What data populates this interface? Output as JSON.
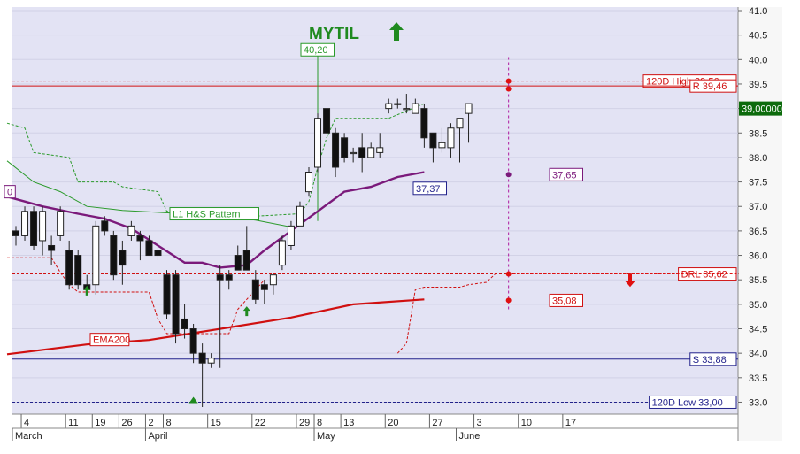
{
  "chart_data": {
    "type": "candlestick",
    "title": "MYTIL",
    "title_signal": "up",
    "ylim": [
      32.9,
      41.0
    ],
    "y_ticks": [
      "41.0",
      "40.5",
      "40.0",
      "39.5",
      "39.0",
      "38.5",
      "38.0",
      "37.5",
      "37.0",
      "36.5",
      "36.0",
      "35.5",
      "35.0",
      "34.5",
      "34.0",
      "33.5",
      "33.0"
    ],
    "last_price": "39,00000",
    "x_ticks": [
      {
        "d": 1,
        "label": "4"
      },
      {
        "d": 6,
        "label": "11"
      },
      {
        "d": 9,
        "label": "19"
      },
      {
        "d": 12,
        "label": "26"
      },
      {
        "d": 15,
        "label": "2"
      },
      {
        "d": 17,
        "label": "8"
      },
      {
        "d": 22,
        "label": "15"
      },
      {
        "d": 27,
        "label": "22"
      },
      {
        "d": 32,
        "label": "29"
      },
      {
        "d": 34,
        "label": "8"
      },
      {
        "d": 37,
        "label": "13"
      },
      {
        "d": 42,
        "label": "20"
      },
      {
        "d": 47,
        "label": "27"
      },
      {
        "d": 52,
        "label": "3"
      },
      {
        "d": 57,
        "label": "10"
      },
      {
        "d": 62,
        "label": "17"
      }
    ],
    "months": [
      {
        "d": 0,
        "label": "March"
      },
      {
        "d": 15,
        "label": "April"
      },
      {
        "d": 34,
        "label": "May"
      },
      {
        "d": 50,
        "label": "June"
      }
    ],
    "candles": [
      [
        36.5,
        36.6,
        36.2,
        36.4
      ],
      [
        36.4,
        37.0,
        36.3,
        36.9
      ],
      [
        36.9,
        37.0,
        36.1,
        36.2
      ],
      [
        36.3,
        37.0,
        36.0,
        36.9
      ],
      [
        36.2,
        36.4,
        35.8,
        36.1
      ],
      [
        36.4,
        37.0,
        36.3,
        36.9
      ],
      [
        36.1,
        36.3,
        35.3,
        35.4
      ],
      [
        36.0,
        36.1,
        35.3,
        35.4
      ],
      [
        35.4,
        35.6,
        35.2,
        35.3
      ],
      [
        35.4,
        36.7,
        35.2,
        36.6
      ],
      [
        36.7,
        36.8,
        36.4,
        36.5
      ],
      [
        36.4,
        36.5,
        35.5,
        35.6
      ],
      [
        36.1,
        36.3,
        35.4,
        35.8
      ],
      [
        36.4,
        36.7,
        36.3,
        36.6
      ],
      [
        36.4,
        36.5,
        35.9,
        36.3
      ],
      [
        36.3,
        36.4,
        36.0,
        36.0
      ],
      [
        36.1,
        36.3,
        35.9,
        36.0
      ],
      [
        35.6,
        35.7,
        34.7,
        34.8
      ],
      [
        35.6,
        35.7,
        34.2,
        34.4
      ],
      [
        34.7,
        35.0,
        34.3,
        34.5
      ],
      [
        34.5,
        34.6,
        33.8,
        34.0
      ],
      [
        34.0,
        34.2,
        32.9,
        33.8
      ],
      [
        33.8,
        34.0,
        33.7,
        33.9
      ],
      [
        35.6,
        35.8,
        33.7,
        35.5
      ],
      [
        35.6,
        35.7,
        35.3,
        35.5
      ],
      [
        36.0,
        36.2,
        35.7,
        35.7
      ],
      [
        36.1,
        36.6,
        35.7,
        35.7
      ],
      [
        35.5,
        35.7,
        35.0,
        35.1
      ],
      [
        35.4,
        35.5,
        35.0,
        35.3
      ],
      [
        35.4,
        35.6,
        35.2,
        35.6
      ],
      [
        35.8,
        36.4,
        35.7,
        36.3
      ],
      [
        36.2,
        36.7,
        36.1,
        36.6
      ],
      [
        36.6,
        37.1,
        36.6,
        37.0
      ],
      [
        37.3,
        37.8,
        37.2,
        37.7
      ],
      [
        37.8,
        38.9,
        37.7,
        38.8
      ],
      [
        39.0,
        39.0,
        38.5,
        38.5
      ],
      [
        38.5,
        38.6,
        37.6,
        37.8
      ],
      [
        38.4,
        38.5,
        37.9,
        38.0
      ],
      [
        38.1,
        38.2,
        37.9,
        38.1
      ],
      [
        38.2,
        38.5,
        37.7,
        38.0
      ],
      [
        38.0,
        38.3,
        38.0,
        38.2
      ],
      [
        38.1,
        38.5,
        38.0,
        38.2
      ],
      [
        39.0,
        39.2,
        38.9,
        39.1
      ],
      [
        39.1,
        39.2,
        39.0,
        39.1
      ],
      [
        39.0,
        39.3,
        38.9,
        39.0
      ],
      [
        38.9,
        39.2,
        38.9,
        39.1
      ],
      [
        39.0,
        39.1,
        38.2,
        38.4
      ],
      [
        38.5,
        38.5,
        37.9,
        38.2
      ],
      [
        38.2,
        38.6,
        38.1,
        38.3
      ],
      [
        38.2,
        38.7,
        38.0,
        38.6
      ],
      [
        38.6,
        38.8,
        37.9,
        38.8
      ],
      [
        38.9,
        39.1,
        38.3,
        39.1
      ]
    ],
    "series": [
      {
        "name": "EMA200",
        "color": "#d01010",
        "points": [
          [
            -1,
            33.98
          ],
          [
            8,
            34.18
          ],
          [
            15,
            34.27
          ],
          [
            22,
            34.47
          ],
          [
            31,
            34.73
          ],
          [
            38,
            35.0
          ],
          [
            46,
            35.1
          ]
        ]
      },
      {
        "name": "",
        "color": "#7b1a7b",
        "points": [
          [
            -1,
            37.2
          ],
          [
            3,
            37.0
          ],
          [
            7,
            36.85
          ],
          [
            10,
            36.75
          ],
          [
            13,
            36.55
          ],
          [
            16,
            36.2
          ],
          [
            19,
            35.85
          ],
          [
            21,
            35.85
          ],
          [
            23,
            35.75
          ],
          [
            26,
            35.8
          ],
          [
            28,
            36.1
          ],
          [
            31,
            36.5
          ],
          [
            34,
            36.9
          ],
          [
            37,
            37.3
          ],
          [
            40,
            37.4
          ],
          [
            43,
            37.6
          ],
          [
            46,
            37.7
          ]
        ]
      },
      {
        "name": "",
        "color": "#2a9a2a",
        "points": [
          [
            -1,
            37.93
          ],
          [
            2,
            37.5
          ],
          [
            5,
            37.3
          ],
          [
            8,
            37.0
          ],
          [
            12,
            36.92
          ],
          [
            16,
            36.88
          ],
          [
            20,
            36.84
          ],
          [
            24,
            36.78
          ],
          [
            27,
            36.72
          ],
          [
            31,
            36.58
          ]
        ]
      }
    ],
    "levels": [
      {
        "label": "120D High 39,56",
        "value": 39.56,
        "color": "#d01010",
        "style": "dashed"
      },
      {
        "label": "R 39,46",
        "value": 39.46,
        "color": "#d01010",
        "style": "solid"
      },
      {
        "label": "DRL 35,62",
        "value": 35.62,
        "color": "#d01010",
        "style": "dashed"
      },
      {
        "label": "S 33,88",
        "value": 33.88,
        "color": "#22228b",
        "style": "solid"
      },
      {
        "label": "120D Low 33,00",
        "value": 33.0,
        "color": "#22228b",
        "style": "dashed"
      }
    ],
    "annotations": [
      {
        "label": "40,20",
        "value": 40.2,
        "color": "#2a9a2a"
      },
      {
        "label": "37,37",
        "value": 37.37,
        "color": "#22228b"
      },
      {
        "label": "37,65",
        "value": 37.65,
        "color": "#7b1a7b"
      },
      {
        "label": "35,08",
        "value": 35.08,
        "color": "#d01010"
      },
      {
        "label": "EMA200",
        "value": 34.28,
        "color": "#d01010"
      },
      {
        "label": "L1  H&S Pattern",
        "value": 36.85,
        "color": "#2a9a2a"
      },
      {
        "label": "0",
        "value": 37.3,
        "color": "#7b1a7b"
      }
    ],
    "signals": [
      {
        "type": "up",
        "d": 8,
        "value": 35.27
      },
      {
        "type": "up",
        "d": 20,
        "value": 33.0
      },
      {
        "type": "up",
        "d": 26,
        "value": 34.85
      },
      {
        "type": "down",
        "d": 52,
        "value": 35.5
      }
    ]
  }
}
